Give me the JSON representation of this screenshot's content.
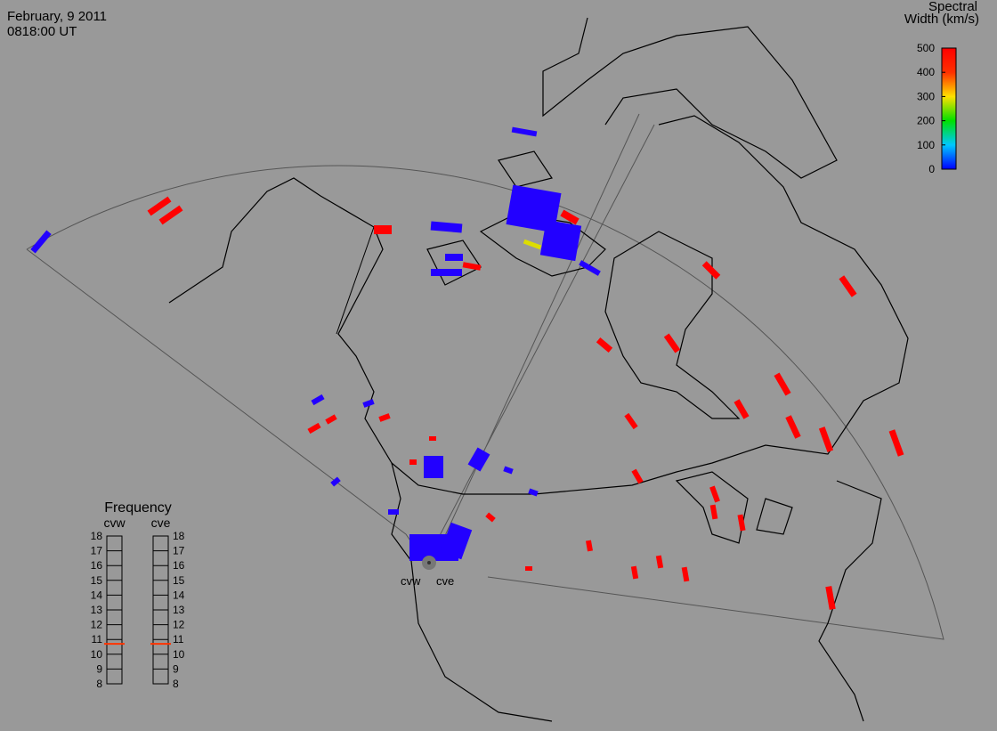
{
  "header": {
    "date": "February, 9 2011",
    "time": "0818:00 UT"
  },
  "color_scale": {
    "title_lines": [
      "Spectral",
      "Width (km/s)"
    ],
    "range": [
      0,
      500
    ],
    "ticks": [
      0,
      100,
      200,
      300,
      400,
      500
    ]
  },
  "frequency_panel": {
    "title": "Frequency",
    "range": [
      8,
      18
    ],
    "ticks": [
      8,
      9,
      10,
      11,
      12,
      13,
      14,
      15,
      16,
      17,
      18
    ],
    "radars": [
      {
        "name": "cvw",
        "value": 10.7,
        "color": "#ff3300"
      },
      {
        "name": "cve",
        "value": 10.7,
        "color": "#ff3300"
      }
    ]
  },
  "site_labels": [
    "cvw",
    "cve"
  ]
}
